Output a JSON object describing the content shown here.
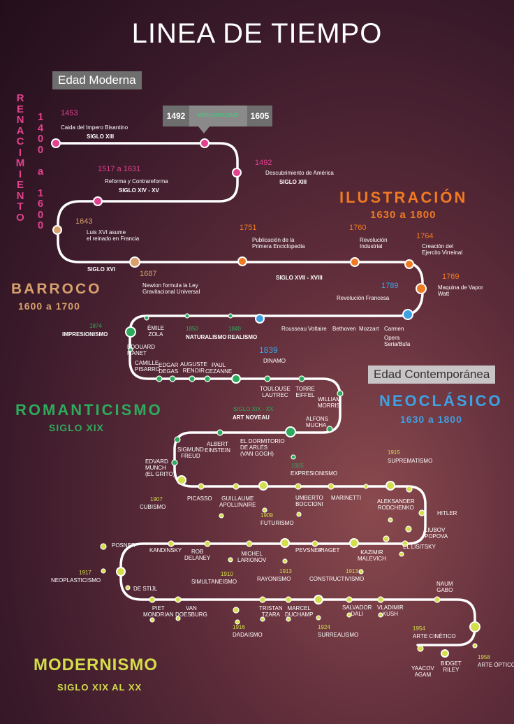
{
  "title": "LINEA DE TIEMPO",
  "colors": {
    "renacimiento": "#e2418f",
    "barroco": "#d8a06d",
    "ilustracion": "#ef7a22",
    "neoclasico": "#3ea1e3",
    "romanticismo": "#2dab5c",
    "modernismo": "#d4dd4a"
  },
  "boxes": {
    "edad_moderna": "Edad Moderna",
    "edad_contemporanea": "Edad Contemporánea"
  },
  "mercantilismo": {
    "start": "1492",
    "label": "MERCANTILISMO",
    "end": "1605"
  },
  "eras": {
    "renacimiento": {
      "name": "RENACIMIENTO",
      "years": "1400 a 1600"
    },
    "ilustracion": {
      "name": "ILUSTRACIÓN",
      "years": "1630 a 1800"
    },
    "barroco": {
      "name": "BARROCO",
      "years": "1600 a 1700"
    },
    "neoclasico": {
      "name": "NEOCLÁSICO",
      "years": "1630 a 1800"
    },
    "romanticismo": {
      "name": "ROMANTICISMO",
      "years": "SIGLO XIX"
    },
    "modernismo": {
      "name": "MODERNISMO",
      "years": "SIGLO XIX AL XX"
    }
  },
  "events": {
    "e1453": {
      "year": "1453",
      "text": "Caida del Impero Bisantino",
      "siglo": "SIGLO XIII"
    },
    "e1492": {
      "year": "1492",
      "text": "Descubrimiento de América",
      "siglo": "SIGLO XIII"
    },
    "e1517": {
      "year": "1517 a 1631",
      "text": "Reforma y Contrareforma",
      "siglo": "SIGLO XIV - XV"
    },
    "e1643": {
      "year": "1643",
      "text": "Luis XVI asume\nel reinado en Francia",
      "siglo": "SIGLO XVI"
    },
    "e1687": {
      "year": "1687",
      "text": "Newton formula la Ley\nGravitacional Universal"
    },
    "e1751": {
      "year": "1751",
      "text": "Publicación de la\nPrimera Enciclopedia"
    },
    "e1760": {
      "year": "1760",
      "text": "Revolución\nIndustrial"
    },
    "e1764": {
      "year": "1764",
      "text": "Creación del\nEjercito Virreinal"
    },
    "e1769": {
      "year": "1769",
      "text": "Maquina de Vapor\nWatt"
    },
    "siglo_xvii": "SIGLO XVII - XVIII",
    "e1789": {
      "year": "1789",
      "text": "Revolución Francesa"
    },
    "e1839": {
      "year": "1839",
      "text": "DINAMO"
    },
    "e1874": {
      "year": "1874",
      "text": "IMPRESIONISMO"
    },
    "e1850": {
      "year": "1850",
      "text": "NATURALISMO"
    },
    "e1840": {
      "year": "1840",
      "text": "REALISMO"
    },
    "art_noveau": {
      "year": "SIGLO XIX - XX",
      "text": "ART NOVEAU"
    },
    "e1905": {
      "year": "1905",
      "text": "EXPRESIONISMO"
    },
    "e1915": {
      "year": "1915",
      "text": "SUPREMATISMO"
    },
    "e1907": {
      "year": "1907",
      "text": "CUBISMO"
    },
    "e1909": {
      "year": "1909",
      "text": "FUTURISMO"
    },
    "e1917": {
      "year": "1917",
      "text": "NEOPLASTICISMO"
    },
    "e1910": {
      "year": "1910",
      "text": "SIMULTANEISMO"
    },
    "e1913a": {
      "year": "1913",
      "text": "RAYONISMO"
    },
    "e1913b": {
      "year": "1913",
      "text": "CONSTRUCTIVISMO"
    },
    "e1916": {
      "year": "1916",
      "text": "DADAISMO"
    },
    "e1924": {
      "year": "1924",
      "text": "SURREALISMO"
    },
    "e1954": {
      "year": "1954",
      "text": "ARTE CINÉTICO"
    },
    "e1958": {
      "year": "1958",
      "text": "ARTE ÓPTICO"
    }
  },
  "people": {
    "rousseau": "Rousseau",
    "voltaire": "Voltaire",
    "bethoven": "Bethoven",
    "mozzart": "Mozzart",
    "carmen": "Carmen",
    "opera": "Opera\nSeria/Bufa",
    "emile_zola": "ÉMILE\nZOLA",
    "edouard_manet": "ÉDOUARD\nMANET",
    "camille_pisarro": "CAMILLE\nPISARRO",
    "edgar_degas": "EDGAR\nDEGAS",
    "auguste_renoir": "AUGUSTE\nRENOIR",
    "paul_cezanne": "PAUL\nCEZANNE",
    "toulouse_lautrec": "TOULOUSE\nLAUTREC",
    "torre_eiffel": "TORRE\nEIFFEL",
    "william_morris": "WILLIAM\nMORRIS",
    "alfons_mucha": "ALFONS\nMUCHA",
    "sigmund_freud": "SIGMUND\nFREUD",
    "albert_einstein": "ALBERT\nEINSTEIN",
    "dormitorio": "EL DORMITORIO\nDE ARLÉS\n(VAN GOGH)",
    "edvard_munch": "EDVARD\nMUNCH\n(EL GRITO)",
    "picasso": "PICASSO",
    "apollinaire": "GUILLAUME\nAPOLLINAIRE",
    "boccioni": "UMBERTO\nBOCCIONI",
    "marinetti": "MARINETTI",
    "rodchenko": "ALEKSANDER\nRODCHENKO",
    "hitler": "HITLER",
    "popova": "LIUBOV\nPOPOVA",
    "lisitsky": "EL LISITSKY",
    "posner": "POSNER",
    "kandinsky": "KANDINSKY",
    "rob_delaney": "ROB\nDELANEY",
    "larionov": "MICHEL\nLARIONOV",
    "pevsner": "PEVSNER",
    "piaget": "PIAGET",
    "malevich": "KAZIMIR\nMALEVICH",
    "de_stijl": "DE STIJL",
    "mondrian": "PIET\nMONDRIAN",
    "doesburg": "VAN\nDOESBURG",
    "tzara": "TRISTAN\nTZARA",
    "duchamp": "MARCEL\nDUCHAMP",
    "dali": "SALVADOR\nDALI",
    "kush": "VLADIMIR\nKUSH",
    "naum_gabo": "NAUM\nGABO",
    "agam": "YAACOV\nAGAM",
    "riley": "BIDGET\nRILEY"
  }
}
